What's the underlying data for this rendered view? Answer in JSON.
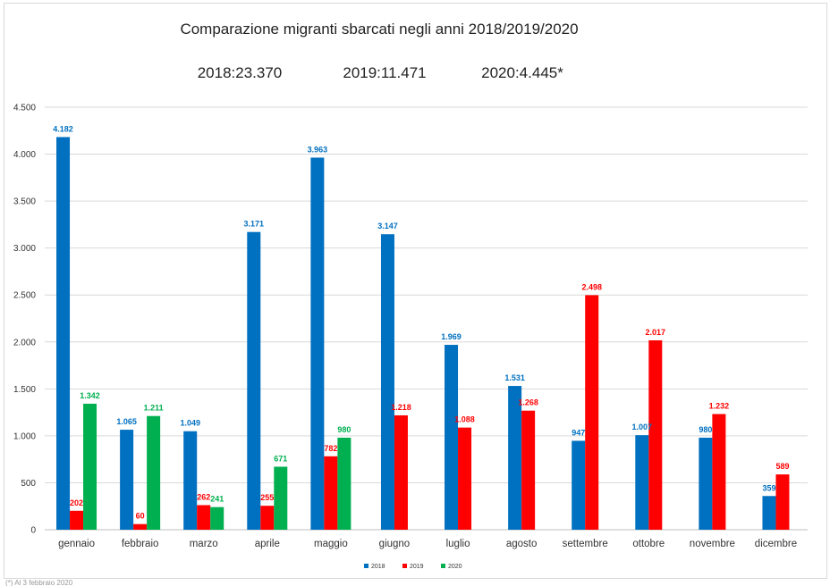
{
  "chart_data": {
    "type": "bar",
    "title": "Comparazione migranti sbarcati negli anni 2018/2019/2020",
    "totals": [
      "2018:23.370",
      "2019:11.471",
      "2020:4.445*"
    ],
    "categories": [
      "gennaio",
      "febbraio",
      "marzo",
      "aprile",
      "maggio",
      "giugno",
      "luglio",
      "agosto",
      "settembre",
      "ottobre",
      "novembre",
      "dicembre"
    ],
    "series": [
      {
        "name": "2018",
        "color": "#0070c0",
        "values": [
          4182,
          1065,
          1049,
          3171,
          3963,
          3147,
          1969,
          1531,
          947,
          1007,
          980,
          359
        ]
      },
      {
        "name": "2019",
        "color": "#ff0000",
        "values": [
          202,
          60,
          262,
          255,
          782,
          1218,
          1088,
          1268,
          2498,
          2017,
          1232,
          589
        ]
      },
      {
        "name": "2020",
        "color": "#00b050",
        "values": [
          1342,
          1211,
          241,
          671,
          980,
          null,
          null,
          null,
          null,
          null,
          null,
          null
        ]
      }
    ],
    "ylim": [
      0,
      4500
    ],
    "yticks": [
      0,
      500,
      1000,
      1500,
      2000,
      2500,
      3000,
      3500,
      4000,
      4500
    ],
    "ytick_labels": [
      "0",
      "500",
      "1.000",
      "1.500",
      "2.000",
      "2.500",
      "3.000",
      "3.500",
      "4.000",
      "4.500"
    ],
    "grid": true,
    "legend_position": "bottom",
    "footnote": "(*) Al 3 febbraio 2020"
  }
}
